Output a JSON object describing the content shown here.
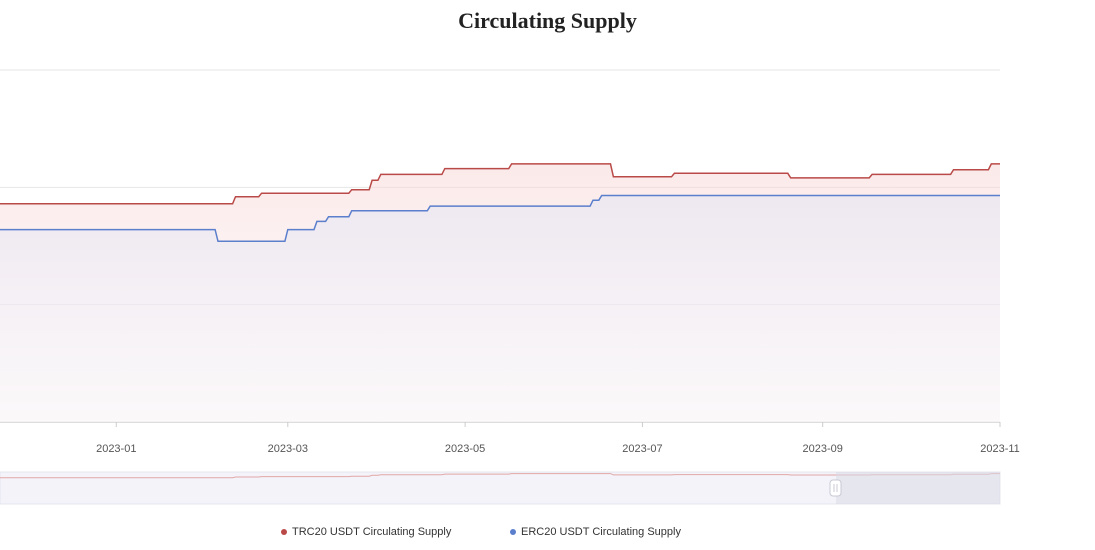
{
  "chart_data": {
    "type": "area",
    "title": "Circulating Supply",
    "xlabel": "",
    "ylabel": "",
    "x_ticks": [
      "2023-01",
      "2023-03",
      "2023-05",
      "2023-07",
      "2023-09",
      "2023-11"
    ],
    "x_range": [
      "2022-11-22",
      "2023-11-01"
    ],
    "y_range": [
      0,
      30
    ],
    "grid": "horizontal",
    "legend_position": "bottom",
    "series": [
      {
        "name": "TRC20 USDT Circulating Supply",
        "color": "#b94a48",
        "points": [
          [
            "2022-11-22",
            18.6
          ],
          [
            "2023-02-10",
            18.6
          ],
          [
            "2023-02-11",
            19.2
          ],
          [
            "2023-02-19",
            19.2
          ],
          [
            "2023-02-20",
            19.5
          ],
          [
            "2023-03-22",
            19.5
          ],
          [
            "2023-03-23",
            19.8
          ],
          [
            "2023-03-29",
            19.8
          ],
          [
            "2023-03-30",
            20.6
          ],
          [
            "2023-04-01",
            20.6
          ],
          [
            "2023-04-02",
            21.1
          ],
          [
            "2023-04-23",
            21.1
          ],
          [
            "2023-04-24",
            21.6
          ],
          [
            "2023-05-16",
            21.6
          ],
          [
            "2023-05-17",
            22.0
          ],
          [
            "2023-06-20",
            22.0
          ],
          [
            "2023-06-21",
            20.9
          ],
          [
            "2023-07-11",
            20.9
          ],
          [
            "2023-07-12",
            21.2
          ],
          [
            "2023-08-20",
            21.2
          ],
          [
            "2023-08-21",
            20.8
          ],
          [
            "2023-09-17",
            20.8
          ],
          [
            "2023-09-18",
            21.1
          ],
          [
            "2023-10-15",
            21.1
          ],
          [
            "2023-10-16",
            21.5
          ],
          [
            "2023-10-28",
            21.5
          ],
          [
            "2023-10-29",
            22.0
          ],
          [
            "2023-11-01",
            22.0
          ]
        ]
      },
      {
        "name": "ERC20 USDT Circulating Supply",
        "color": "#5b7fcc",
        "points": [
          [
            "2022-11-22",
            16.4
          ],
          [
            "2023-02-04",
            16.4
          ],
          [
            "2023-02-05",
            15.4
          ],
          [
            "2023-02-28",
            15.4
          ],
          [
            "2023-03-01",
            16.4
          ],
          [
            "2023-03-10",
            16.4
          ],
          [
            "2023-03-11",
            17.1
          ],
          [
            "2023-03-14",
            17.1
          ],
          [
            "2023-03-15",
            17.5
          ],
          [
            "2023-03-22",
            17.5
          ],
          [
            "2023-03-23",
            18.0
          ],
          [
            "2023-04-18",
            18.0
          ],
          [
            "2023-04-19",
            18.4
          ],
          [
            "2023-06-13",
            18.4
          ],
          [
            "2023-06-14",
            18.9
          ],
          [
            "2023-06-16",
            18.9
          ],
          [
            "2023-06-17",
            19.3
          ],
          [
            "2023-11-01",
            19.3
          ]
        ]
      }
    ]
  }
}
